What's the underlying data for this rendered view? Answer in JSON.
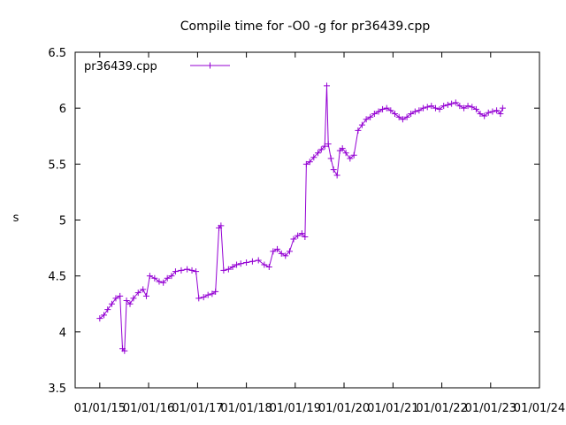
{
  "chart_data": {
    "type": "line",
    "title": "Compile time for -O0 -g for pr36439.cpp",
    "ylabel": "s",
    "xlabel": "",
    "x_ticks": [
      "01/01/15",
      "01/01/16",
      "01/01/17",
      "01/01/18",
      "01/01/19",
      "01/01/20",
      "01/01/21",
      "01/01/22",
      "01/01/23",
      "01/01/24"
    ],
    "y_ticks": [
      "3.5",
      "4",
      "4.5",
      "5",
      "5.5",
      "6",
      "6.5"
    ],
    "ylim": [
      3.5,
      6.5
    ],
    "xlim": [
      "2014-07-01",
      "2024-01-01"
    ],
    "legend_position": "top-left",
    "grid": false,
    "series": [
      {
        "name": "pr36439.cpp",
        "color": "#9400d3",
        "marker": "plus",
        "points": [
          [
            "2015-01-01",
            4.12
          ],
          [
            "2015-02-01",
            4.15
          ],
          [
            "2015-03-01",
            4.2
          ],
          [
            "2015-04-01",
            4.25
          ],
          [
            "2015-05-01",
            4.3
          ],
          [
            "2015-06-01",
            4.32
          ],
          [
            "2015-06-20",
            3.85
          ],
          [
            "2015-07-05",
            3.83
          ],
          [
            "2015-07-20",
            4.28
          ],
          [
            "2015-08-15",
            4.25
          ],
          [
            "2015-09-10",
            4.3
          ],
          [
            "2015-10-15",
            4.35
          ],
          [
            "2015-11-20",
            4.38
          ],
          [
            "2015-12-15",
            4.32
          ],
          [
            "2016-01-10",
            4.5
          ],
          [
            "2016-02-15",
            4.48
          ],
          [
            "2016-03-20",
            4.45
          ],
          [
            "2016-04-20",
            4.44
          ],
          [
            "2016-05-20",
            4.48
          ],
          [
            "2016-06-20",
            4.5
          ],
          [
            "2016-07-20",
            4.54
          ],
          [
            "2016-09-01",
            4.55
          ],
          [
            "2016-10-15",
            4.56
          ],
          [
            "2016-11-20",
            4.55
          ],
          [
            "2016-12-20",
            4.54
          ],
          [
            "2017-01-10",
            4.3
          ],
          [
            "2017-02-15",
            4.31
          ],
          [
            "2017-03-20",
            4.33
          ],
          [
            "2017-04-20",
            4.34
          ],
          [
            "2017-05-15",
            4.36
          ],
          [
            "2017-06-10",
            4.93
          ],
          [
            "2017-06-25",
            4.95
          ],
          [
            "2017-07-15",
            4.55
          ],
          [
            "2017-08-20",
            4.56
          ],
          [
            "2017-09-20",
            4.58
          ],
          [
            "2017-10-20",
            4.6
          ],
          [
            "2017-11-20",
            4.61
          ],
          [
            "2018-01-01",
            4.62
          ],
          [
            "2018-02-15",
            4.63
          ],
          [
            "2018-04-01",
            4.64
          ],
          [
            "2018-05-15",
            4.6
          ],
          [
            "2018-06-20",
            4.58
          ],
          [
            "2018-07-20",
            4.72
          ],
          [
            "2018-08-20",
            4.74
          ],
          [
            "2018-09-20",
            4.7
          ],
          [
            "2018-10-20",
            4.68
          ],
          [
            "2018-11-20",
            4.72
          ],
          [
            "2018-12-20",
            4.83
          ],
          [
            "2019-01-20",
            4.86
          ],
          [
            "2019-02-20",
            4.88
          ],
          [
            "2019-03-15",
            4.85
          ],
          [
            "2019-03-25",
            5.5
          ],
          [
            "2019-04-20",
            5.52
          ],
          [
            "2019-05-20",
            5.56
          ],
          [
            "2019-06-20",
            5.6
          ],
          [
            "2019-07-15",
            5.63
          ],
          [
            "2019-08-10",
            5.66
          ],
          [
            "2019-08-25",
            6.2
          ],
          [
            "2019-09-05",
            5.68
          ],
          [
            "2019-09-25",
            5.55
          ],
          [
            "2019-10-15",
            5.45
          ],
          [
            "2019-11-10",
            5.4
          ],
          [
            "2019-12-01",
            5.62
          ],
          [
            "2019-12-20",
            5.64
          ],
          [
            "2020-01-15",
            5.6
          ],
          [
            "2020-02-15",
            5.55
          ],
          [
            "2020-03-15",
            5.58
          ],
          [
            "2020-04-15",
            5.8
          ],
          [
            "2020-05-15",
            5.85
          ],
          [
            "2020-06-15",
            5.9
          ],
          [
            "2020-07-15",
            5.92
          ],
          [
            "2020-08-15",
            5.95
          ],
          [
            "2020-09-15",
            5.97
          ],
          [
            "2020-10-15",
            5.99
          ],
          [
            "2020-11-15",
            6.0
          ],
          [
            "2020-12-15",
            5.98
          ],
          [
            "2021-01-15",
            5.95
          ],
          [
            "2021-02-15",
            5.92
          ],
          [
            "2021-03-15",
            5.9
          ],
          [
            "2021-04-15",
            5.92
          ],
          [
            "2021-05-15",
            5.95
          ],
          [
            "2021-06-15",
            5.97
          ],
          [
            "2021-07-15",
            5.98
          ],
          [
            "2021-08-15",
            6.0
          ],
          [
            "2021-09-15",
            6.01
          ],
          [
            "2021-10-15",
            6.02
          ],
          [
            "2021-11-15",
            6.0
          ],
          [
            "2021-12-15",
            5.99
          ],
          [
            "2022-01-15",
            6.02
          ],
          [
            "2022-02-15",
            6.03
          ],
          [
            "2022-03-15",
            6.04
          ],
          [
            "2022-04-15",
            6.05
          ],
          [
            "2022-05-15",
            6.02
          ],
          [
            "2022-06-15",
            6.0
          ],
          [
            "2022-07-15",
            6.02
          ],
          [
            "2022-08-15",
            6.01
          ],
          [
            "2022-09-15",
            5.99
          ],
          [
            "2022-10-15",
            5.95
          ],
          [
            "2022-11-15",
            5.93
          ],
          [
            "2022-12-15",
            5.96
          ],
          [
            "2023-01-15",
            5.97
          ],
          [
            "2023-02-15",
            5.98
          ],
          [
            "2023-03-15",
            5.95
          ],
          [
            "2023-04-01",
            6.0
          ]
        ]
      }
    ]
  }
}
